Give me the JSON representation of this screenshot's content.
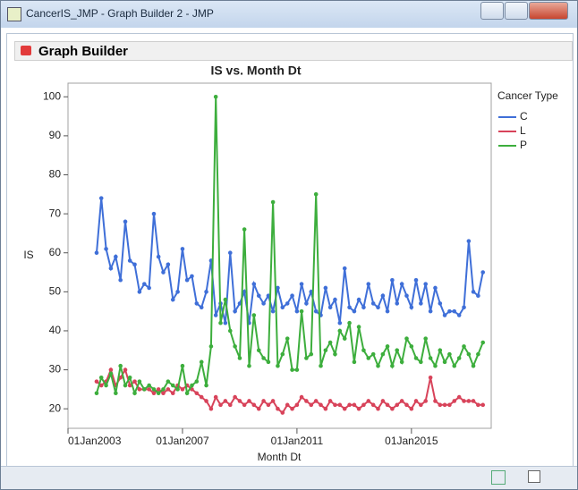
{
  "window": {
    "title": "CancerIS_JMP - Graph Builder 2 - JMP"
  },
  "panel": {
    "title": "Graph Builder"
  },
  "chart_data": {
    "type": "line",
    "title": "IS vs. Month Dt",
    "x_label": "Month Dt",
    "y_label": "IS",
    "legend_title": "Cancer Type",
    "legend": "right",
    "grid": false,
    "x": [
      "2004-01-01",
      "2004-03-01",
      "2004-05-01",
      "2004-07-01",
      "2004-09-01",
      "2004-11-01",
      "2005-01-01",
      "2005-03-01",
      "2005-05-01",
      "2005-07-01",
      "2005-09-01",
      "2005-11-01",
      "2006-01-01",
      "2006-03-01",
      "2006-05-01",
      "2006-07-01",
      "2006-09-01",
      "2006-11-01",
      "2007-01-01",
      "2007-03-01",
      "2007-05-01",
      "2007-07-01",
      "2007-09-01",
      "2007-11-01",
      "2008-01-01",
      "2008-03-01",
      "2008-05-01",
      "2008-07-01",
      "2008-09-01",
      "2008-11-01",
      "2009-01-01",
      "2009-03-01",
      "2009-05-01",
      "2009-07-01",
      "2009-09-01",
      "2009-11-01",
      "2010-01-01",
      "2010-03-01",
      "2010-05-01",
      "2010-07-01",
      "2010-09-01",
      "2010-11-01",
      "2011-01-01",
      "2011-03-01",
      "2011-05-01",
      "2011-07-01",
      "2011-09-01",
      "2011-11-01",
      "2012-01-01",
      "2012-03-01",
      "2012-05-01",
      "2012-07-01",
      "2012-09-01",
      "2012-11-01",
      "2013-01-01",
      "2013-03-01",
      "2013-05-01",
      "2013-07-01",
      "2013-09-01",
      "2013-11-01",
      "2014-01-01",
      "2014-03-01",
      "2014-05-01",
      "2014-07-01",
      "2014-09-01",
      "2014-11-01",
      "2015-01-01",
      "2015-03-01",
      "2015-05-01",
      "2015-07-01",
      "2015-09-01",
      "2015-11-01",
      "2016-01-01",
      "2016-03-01",
      "2016-05-01",
      "2016-07-01",
      "2016-09-01",
      "2016-11-01",
      "2017-01-01",
      "2017-03-01",
      "2017-05-01",
      "2017-07-01"
    ],
    "series": [
      {
        "name": "C",
        "color": "#3f6fd8",
        "values": [
          60,
          74,
          61,
          56,
          59,
          53,
          68,
          58,
          57,
          50,
          52,
          51,
          70,
          59,
          55,
          57,
          48,
          50,
          61,
          53,
          54,
          47,
          46,
          50,
          58,
          44,
          47,
          42,
          60,
          45,
          47,
          50,
          42,
          52,
          49,
          47,
          49,
          45,
          51,
          46,
          47,
          49,
          45,
          52,
          47,
          50,
          45,
          44,
          51,
          46,
          48,
          42,
          56,
          46,
          45,
          48,
          46,
          52,
          47,
          46,
          49,
          45,
          53,
          47,
          52,
          49,
          46,
          53,
          47,
          52,
          45,
          51,
          47,
          44,
          45,
          45,
          44,
          46,
          63,
          50,
          49,
          55
        ]
      },
      {
        "name": "L",
        "color": "#d8435a",
        "values": [
          27,
          26,
          27,
          30,
          26,
          28,
          30,
          26,
          27,
          25,
          25,
          25,
          24,
          25,
          24,
          25,
          24,
          26,
          25,
          26,
          25,
          24,
          23,
          22,
          20,
          23,
          21,
          22,
          21,
          23,
          22,
          21,
          22,
          21,
          20,
          22,
          21,
          22,
          20,
          19,
          21,
          20,
          21,
          23,
          22,
          21,
          22,
          21,
          20,
          22,
          21,
          21,
          20,
          21,
          21,
          20,
          21,
          22,
          21,
          20,
          22,
          21,
          20,
          21,
          22,
          21,
          20,
          22,
          21,
          22,
          28,
          22,
          21,
          21,
          21,
          22,
          23,
          22,
          22,
          22,
          21,
          21
        ]
      },
      {
        "name": "P",
        "color": "#3dae3d",
        "values": [
          24,
          28,
          26,
          29,
          24,
          31,
          26,
          28,
          24,
          27,
          25,
          26,
          25,
          24,
          25,
          27,
          26,
          25,
          31,
          24,
          26,
          27,
          32,
          26,
          36,
          100,
          42,
          48,
          40,
          36,
          33,
          66,
          31,
          44,
          35,
          33,
          32,
          73,
          31,
          34,
          38,
          30,
          30,
          45,
          33,
          34,
          75,
          31,
          35,
          37,
          34,
          40,
          38,
          42,
          32,
          41,
          35,
          33,
          34,
          31,
          34,
          36,
          31,
          35,
          32,
          38,
          36,
          33,
          32,
          38,
          33,
          31,
          35,
          32,
          34,
          31,
          33,
          36,
          34,
          31,
          34,
          37
        ]
      }
    ],
    "xlim": [
      "2003-01-01",
      "2017-10-15"
    ],
    "xticks": [
      {
        "value": "2003-01-01",
        "label": "01Jan2003"
      },
      {
        "value": "2007-01-01",
        "label": "01Jan2007"
      },
      {
        "value": "2011-01-01",
        "label": "01Jan2011"
      },
      {
        "value": "2015-01-01",
        "label": "01Jan2015"
      }
    ],
    "ylim": [
      15,
      103.5
    ],
    "yticks": [
      20,
      30,
      40,
      50,
      60,
      70,
      80,
      90,
      100
    ]
  }
}
